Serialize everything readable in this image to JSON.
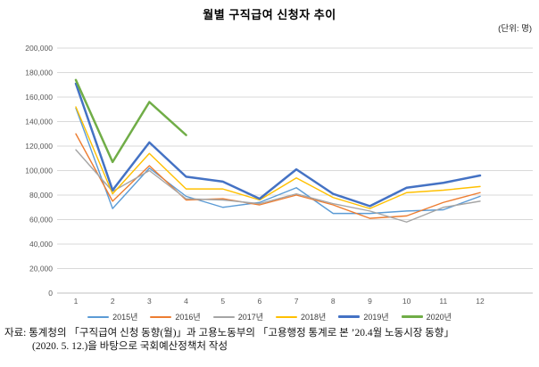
{
  "title": "월별 구직급여 신청자 추이",
  "unit_label": "(단위: 명)",
  "source_note": {
    "line1": "자료: 통계청의 「구직급여 신청 동향(월)」과 고용노동부의 「고용행정 통계로 본 ’20.4월 노동시장 동향」",
    "line2": "(2020. 5. 12.)을 바탕으로 국회예산정책처 작성"
  },
  "chart_data": {
    "type": "line",
    "title": "월별 구직급여 신청자 추이",
    "unit": "명",
    "xlabel": "",
    "ylabel": "",
    "categories": [
      "1",
      "2",
      "3",
      "4",
      "5",
      "6",
      "7",
      "8",
      "9",
      "10",
      "11",
      "12"
    ],
    "ylim": [
      0,
      200000
    ],
    "ytick_step": 20000,
    "grid": true,
    "legend_position": "bottom",
    "series": [
      {
        "name": "2015년",
        "color": "#5B9BD5",
        "width": 1.4,
        "values": [
          151000,
          69000,
          102000,
          79000,
          70000,
          74000,
          86000,
          65000,
          65000,
          67000,
          68000,
          79000
        ]
      },
      {
        "name": "2016년",
        "color": "#ED7D31",
        "width": 1.4,
        "values": [
          130000,
          75000,
          104000,
          76000,
          77000,
          72000,
          80000,
          72000,
          61000,
          63000,
          74000,
          82000
        ]
      },
      {
        "name": "2017년",
        "color": "#A5A5A5",
        "width": 1.4,
        "values": [
          117000,
          83000,
          100000,
          77000,
          76000,
          73000,
          81000,
          73000,
          67000,
          58000,
          70000,
          75000
        ]
      },
      {
        "name": "2018년",
        "color": "#FFC000",
        "width": 1.4,
        "values": [
          152000,
          81000,
          114000,
          85000,
          85000,
          76000,
          94000,
          78000,
          69000,
          82000,
          84000,
          87000
        ]
      },
      {
        "name": "2019년",
        "color": "#4472C4",
        "width": 2.5,
        "values": [
          171000,
          84000,
          123000,
          95000,
          91000,
          77000,
          101000,
          81000,
          71000,
          86000,
          90000,
          96000
        ]
      },
      {
        "name": "2020년",
        "color": "#70AD47",
        "width": 2.5,
        "values": [
          174000,
          107000,
          156000,
          129000,
          null,
          null,
          null,
          null,
          null,
          null,
          null,
          null
        ]
      }
    ]
  },
  "colors": {
    "gridline": "#D9D9D9",
    "axis_line": "#BFBFBF",
    "tick_text": "#595959"
  }
}
